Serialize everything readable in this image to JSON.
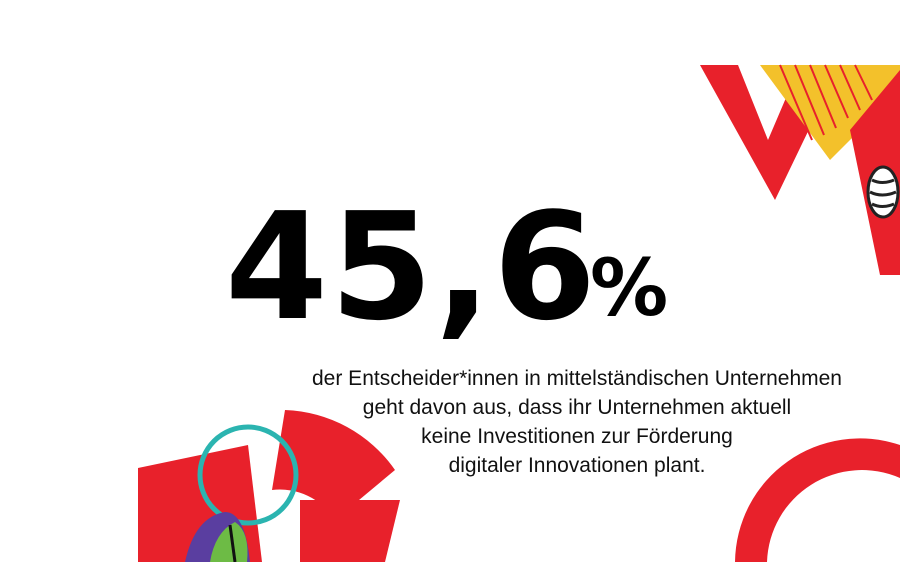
{
  "stat": {
    "number": "45,6",
    "unit": "%"
  },
  "description": {
    "lines": [
      "der Entscheider*innen in mittelständischen Unternehmen",
      "geht davon aus, dass ihr Unternehmen aktuell",
      "keine Investitionen zur Förderung",
      "digitaler Innovationen plant."
    ]
  }
}
